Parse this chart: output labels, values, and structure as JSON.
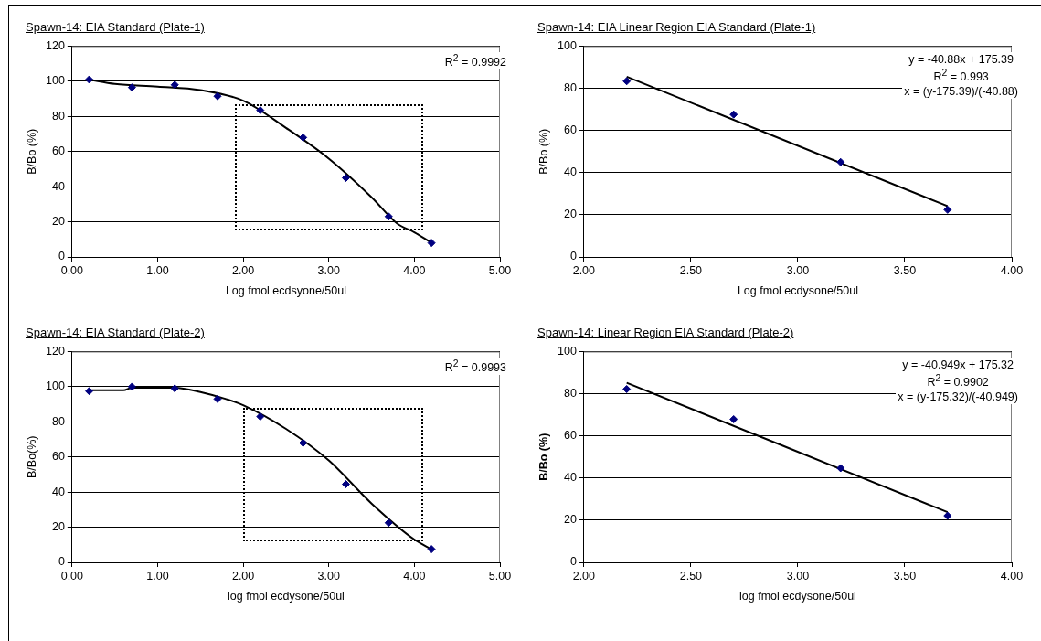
{
  "chart_data": [
    {
      "type": "scatter",
      "title": "Spawn-14: EIA Standard (Plate-1)",
      "xlabel": "Log fmol ecdsyone/50ul",
      "ylabel": "B/Bo (%)",
      "xlim": [
        0,
        5
      ],
      "xticks": [
        {
          "value": 0,
          "label": "0.00"
        },
        {
          "value": 1,
          "label": "1.00"
        },
        {
          "value": 2,
          "label": "2.00"
        },
        {
          "value": 3,
          "label": "3.00"
        },
        {
          "value": 4,
          "label": "4.00"
        },
        {
          "value": 5,
          "label": "5.00"
        }
      ],
      "ylim": [
        0,
        120
      ],
      "yticks": [
        0,
        20,
        40,
        60,
        80,
        100,
        120
      ],
      "grid": "y",
      "legend": false,
      "marker": "diamond",
      "annotations": [
        "R$^{2}$ = 0.9992"
      ],
      "series": [
        {
          "color": "#000080",
          "x": [
            0.2,
            0.7,
            1.2,
            1.7,
            2.2,
            2.7,
            3.2,
            3.7,
            4.2
          ],
          "values": [
            101,
            96.5,
            98,
            91.5,
            83.5,
            68,
            45,
            23,
            8
          ]
        },
        {
          "type": "line",
          "marker": "none",
          "color": "#000000",
          "x": [
            0.2,
            0.5,
            1.0,
            1.5,
            2.0,
            2.5,
            3.0,
            3.5,
            3.8,
            4.0,
            4.2
          ],
          "values": [
            101,
            98.5,
            97,
            95,
            89,
            73.5,
            56,
            34,
            19,
            14,
            8
          ]
        }
      ]
    },
    {
      "type": "scatter",
      "title": "Spawn-14: EIA Linear Region EIA Standard (Plate-1)",
      "xlabel": "Log fmol ecdysone/50ul",
      "ylabel": "B/Bo (%)",
      "xlim": [
        2,
        4
      ],
      "xticks": [
        {
          "value": 2,
          "label": "2.00"
        },
        {
          "value": 2.5,
          "label": "2.50"
        },
        {
          "value": 3,
          "label": "3.00"
        },
        {
          "value": 3.5,
          "label": "3.50"
        },
        {
          "value": 4,
          "label": "4.00"
        }
      ],
      "ylim": [
        0,
        100
      ],
      "yticks": [
        0,
        20,
        40,
        60,
        80,
        100
      ],
      "grid": "y",
      "legend": false,
      "marker": "diamond",
      "annotations": [
        "y = -40.88x + 175.39",
        "R$^{2}$ = 0.993",
        "x = (y-175.39)/(-40.88)"
      ],
      "series": [
        {
          "color": "#000080",
          "x": [
            2.2,
            2.7,
            3.2,
            3.7
          ],
          "values": [
            83.4,
            67.6,
            45,
            22.4
          ]
        },
        {
          "type": "line",
          "marker": "none",
          "color": "#000000",
          "x": [
            2.2,
            3.7
          ],
          "values": [
            85.5,
            24.1
          ]
        }
      ]
    },
    {
      "type": "scatter",
      "title": "Spawn-14: EIA Standard (Plate-2)",
      "xlabel": "log fmol ecdysone/50ul",
      "ylabel": "B/Bo(%)",
      "xlim": [
        0,
        5
      ],
      "xticks": [
        {
          "value": 0,
          "label": "0.00"
        },
        {
          "value": 1,
          "label": "1.00"
        },
        {
          "value": 2,
          "label": "2.00"
        },
        {
          "value": 3,
          "label": "3.00"
        },
        {
          "value": 4,
          "label": "4.00"
        },
        {
          "value": 5,
          "label": "5.00"
        }
      ],
      "ylim": [
        0,
        120
      ],
      "yticks": [
        0,
        20,
        40,
        60,
        80,
        100,
        120
      ],
      "grid": "y",
      "legend": false,
      "marker": "diamond",
      "annotations": [
        "R$^{2}$ = 0.9993"
      ],
      "series": [
        {
          "color": "#000080",
          "x": [
            0.2,
            0.7,
            1.2,
            1.7,
            2.2,
            2.7,
            3.2,
            3.7,
            4.2
          ],
          "values": [
            97.5,
            100,
            99,
            93,
            83,
            68,
            44.5,
            22.5,
            7.5
          ]
        },
        {
          "type": "line",
          "marker": "none",
          "color": "#000000",
          "x": [
            0.2,
            0.6,
            0.7,
            1.2,
            1.5,
            1.8,
            2.0,
            2.5,
            3.0,
            3.5,
            4.0,
            4.2
          ],
          "values": [
            98,
            98,
            99.5,
            99.5,
            97,
            93,
            89.5,
            76,
            58,
            33.5,
            13,
            7.5
          ]
        }
      ]
    },
    {
      "type": "scatter",
      "title": "Spawn-14: Linear Region EIA Standard (Plate-2)",
      "xlabel": "log fmol ecdysone/50ul",
      "ylabel": "B/Bo (%)",
      "xlim": [
        2,
        4
      ],
      "xticks": [
        {
          "value": 2,
          "label": "2.00"
        },
        {
          "value": 2.5,
          "label": "2.50"
        },
        {
          "value": 3,
          "label": "3.00"
        },
        {
          "value": 3.5,
          "label": "3.50"
        },
        {
          "value": 4,
          "label": "4.00"
        }
      ],
      "ylim": [
        0,
        100
      ],
      "yticks": [
        0,
        20,
        40,
        60,
        80,
        100
      ],
      "grid": "y",
      "legend": false,
      "marker": "diamond",
      "annotations": [
        "y = -40.949x + 175.32",
        "R$^{2}$ = 0.9902",
        "x = (y-175.32)/(-40.949)"
      ],
      "series": [
        {
          "color": "#000080",
          "x": [
            2.2,
            2.7,
            3.2,
            3.7
          ],
          "values": [
            82.2,
            67.9,
            44.7,
            22.1
          ]
        },
        {
          "type": "line",
          "marker": "none",
          "color": "#000000",
          "x": [
            2.2,
            3.7
          ],
          "values": [
            85.2,
            23.8
          ]
        }
      ]
    }
  ]
}
